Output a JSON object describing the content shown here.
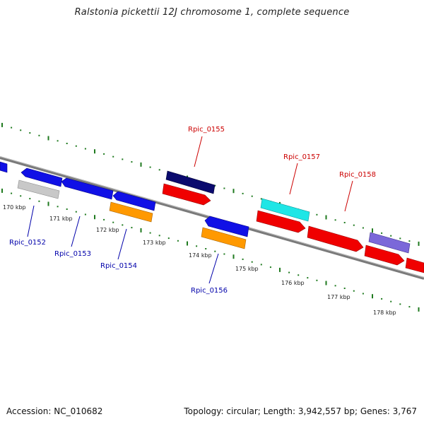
{
  "title": "Ralstonia pickettii 12J chromosome 1, complete sequence",
  "footer": {
    "accession": "Accession: NC_010682",
    "topology": "Topology: circular; Length: 3,942,557 bp; Genes: 3,767"
  },
  "scale_labels": [
    "170 kbp",
    "171 kbp",
    "172 kbp",
    "173 kbp",
    "174 kbp",
    "175 kbp",
    "176 kbp",
    "177 kbp",
    "178 kbp"
  ],
  "gene_labels": [
    {
      "name": "Rpic_0152",
      "color": "#0000aa"
    },
    {
      "name": "Rpic_0153",
      "color": "#0000aa"
    },
    {
      "name": "Rpic_0154",
      "color": "#0000aa"
    },
    {
      "name": "Rpic_0155",
      "color": "#cc0000"
    },
    {
      "name": "Rpic_0156",
      "color": "#0000aa"
    },
    {
      "name": "Rpic_0157",
      "color": "#cc0000"
    },
    {
      "name": "Rpic_0158",
      "color": "#cc0000"
    }
  ],
  "colors": {
    "backbone": "#7a7a7a",
    "ticks": "#1f7a1f",
    "red": "#f00000",
    "blue": "#1010e6",
    "navy": "#0a0a6e",
    "orange": "#ff9900",
    "cyan": "#1fe6e6",
    "grey": "#c8c8c8",
    "purple": "#7b68d9"
  }
}
